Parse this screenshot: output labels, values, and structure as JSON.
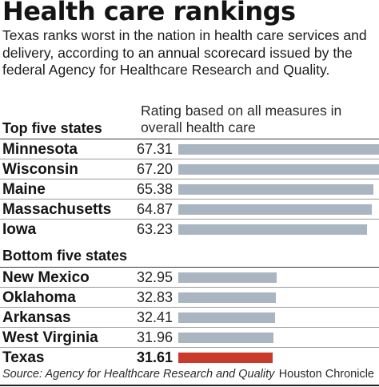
{
  "title": "Health care rankings",
  "subtitle": "Texas ranks worst in the nation in health care services and delivery, according to an annual scorecard issued by the federal Agency for Healthcare Research and Quality.",
  "column_header": "Rating based on all measures in overall health care",
  "top_group_label": "Top five states",
  "bottom_group_label": "Bottom five states",
  "source": "Source: Agency for Healthcare Research and Quality",
  "credit": "Houston Chronicle",
  "colors": {
    "bar": "#a9b5c1",
    "highlight_bar": "#c93a2b"
  },
  "chart_data": {
    "type": "bar",
    "orientation": "horizontal",
    "title": "Health care rankings",
    "xlim": [
      0,
      67.31
    ],
    "groups": [
      {
        "label": "Top five states",
        "categories": [
          "Minnesota",
          "Wisconsin",
          "Maine",
          "Massachusetts",
          "Iowa"
        ],
        "values": [
          67.31,
          67.2,
          65.38,
          64.87,
          63.23
        ],
        "value_labels": [
          "67.31",
          "67.20",
          "65.38",
          "64.87",
          "63.23"
        ]
      },
      {
        "label": "Bottom five states",
        "categories": [
          "New Mexico",
          "Oklahoma",
          "Arkansas",
          "West Virginia",
          "Texas"
        ],
        "values": [
          32.95,
          32.83,
          32.41,
          31.96,
          31.61
        ],
        "value_labels": [
          "32.95",
          "32.83",
          "32.41",
          "31.96",
          "31.61"
        ],
        "highlight": "Texas"
      }
    ]
  }
}
